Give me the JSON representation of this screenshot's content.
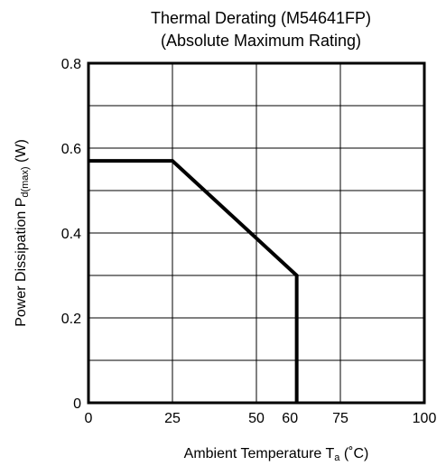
{
  "chart_data": {
    "type": "line",
    "title": "Thermal Derating (M54641FP)",
    "subtitle": "(Absolute Maximum Rating)",
    "xlabel": {
      "main": "Ambient Temperature T",
      "sub": "a",
      "unit": " (˚C)"
    },
    "ylabel": {
      "main": "Power Dissipation P",
      "sub": "d(max)",
      "unit": " (W)"
    },
    "xlim": [
      0,
      100
    ],
    "ylim": [
      0,
      0.8
    ],
    "x_ticks": [
      {
        "value": 0,
        "label": "0"
      },
      {
        "value": 25,
        "label": "25"
      },
      {
        "value": 50,
        "label": "50"
      },
      {
        "value": 60,
        "label": "60"
      },
      {
        "value": 75,
        "label": "75"
      },
      {
        "value": 100,
        "label": "100"
      }
    ],
    "y_ticks": [
      {
        "value": 0,
        "label": "0"
      },
      {
        "value": 0.2,
        "label": "0.2"
      },
      {
        "value": 0.4,
        "label": "0.4"
      },
      {
        "value": 0.6,
        "label": "0.6"
      },
      {
        "value": 0.8,
        "label": "0.8"
      }
    ],
    "x_grid": [
      25,
      50,
      75
    ],
    "y_grid": [
      0.1,
      0.2,
      0.3,
      0.4,
      0.5,
      0.6,
      0.7
    ],
    "grid": true,
    "series": [
      {
        "x": [
          0,
          25,
          62,
          62
        ],
        "y": [
          0.57,
          0.57,
          0.3,
          0
        ]
      }
    ]
  }
}
